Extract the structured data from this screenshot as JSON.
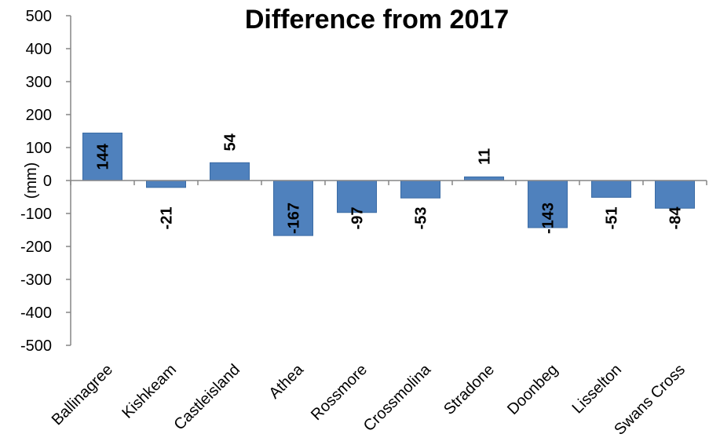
{
  "chart_data": {
    "type": "bar",
    "title": "Difference from 2017",
    "ylabel": "(mm)",
    "xlabel": "",
    "categories": [
      "Ballinagree",
      "Kishkeam",
      "Castleisland",
      "Athea",
      "Rossmore",
      "Crossmolina",
      "Stradone",
      "Doonbeg",
      "Lisselton",
      "Swans Cross"
    ],
    "values": [
      144,
      -21,
      54,
      -167,
      -97,
      -53,
      11,
      -143,
      -51,
      -84
    ],
    "data_labels": [
      "144",
      "-21",
      "54",
      "-167",
      "-97",
      "-53",
      "11",
      "-143",
      "-51",
      "-84"
    ],
    "ylim": [
      -500,
      500
    ],
    "yticks": [
      500,
      400,
      300,
      200,
      100,
      0,
      -100,
      -200,
      -300,
      -400,
      -500
    ],
    "ytick_labels": [
      "500",
      "400",
      "300",
      "200",
      "100",
      "0",
      "-100",
      "-200",
      "-300",
      "-400",
      "-500"
    ],
    "bar_color": "#4f81bd",
    "bar_border_color": "#3a6ba5",
    "grid": false,
    "legend": "none"
  }
}
